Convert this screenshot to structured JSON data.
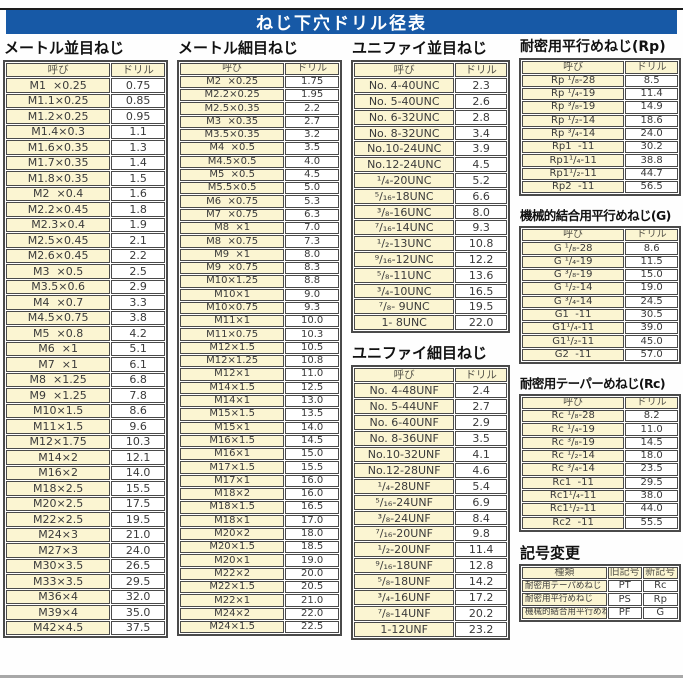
{
  "page_title": "ねじ下穴ドリル径表",
  "colors": {
    "header_blue": "#1759a6",
    "cell_cream": "#fbf5d2",
    "border_gray": "#4a4a4a"
  },
  "tables": [
    {
      "title": "メートル並目ねじ",
      "headers": [
        "呼び",
        "ドリル"
      ],
      "rows": [
        [
          "M1  ×0.25",
          "0.75"
        ],
        [
          "M1.1×0.25",
          "0.85"
        ],
        [
          "M1.2×0.25",
          "0.95"
        ],
        [
          "M1.4×0.3",
          "1.1"
        ],
        [
          "M1.6×0.35",
          "1.3"
        ],
        [
          "M1.7×0.35",
          "1.4"
        ],
        [
          "M1.8×0.35",
          "1.5"
        ],
        [
          "M2  ×0.4",
          "1.6"
        ],
        [
          "M2.2×0.45",
          "1.8"
        ],
        [
          "M2.3×0.4",
          "1.9"
        ],
        [
          "M2.5×0.45",
          "2.1"
        ],
        [
          "M2.6×0.45",
          "2.2"
        ],
        [
          "M3  ×0.5",
          "2.5"
        ],
        [
          "M3.5×0.6",
          "2.9"
        ],
        [
          "M4  ×0.7",
          "3.3"
        ],
        [
          "M4.5×0.75",
          "3.8"
        ],
        [
          "M5  ×0.8",
          "4.2"
        ],
        [
          "M6  ×1",
          "5.1"
        ],
        [
          "M7  ×1",
          "6.1"
        ],
        [
          "M8  ×1.25",
          "6.8"
        ],
        [
          "M9  ×1.25",
          "7.8"
        ],
        [
          "M10×1.5",
          "8.6"
        ],
        [
          "M11×1.5",
          "9.6"
        ],
        [
          "M12×1.75",
          "10.3"
        ],
        [
          "M14×2",
          "12.1"
        ],
        [
          "M16×2",
          "14.0"
        ],
        [
          "M18×2.5",
          "15.5"
        ],
        [
          "M20×2.5",
          "17.5"
        ],
        [
          "M22×2.5",
          "19.5"
        ],
        [
          "M24×3",
          "21.0"
        ],
        [
          "M27×3",
          "24.0"
        ],
        [
          "M30×3.5",
          "26.5"
        ],
        [
          "M33×3.5",
          "29.5"
        ],
        [
          "M36×4",
          "32.0"
        ],
        [
          "M39×4",
          "35.0"
        ],
        [
          "M42×4.5",
          "37.5"
        ]
      ]
    },
    {
      "title": "メートル細目ねじ",
      "headers": [
        "呼び",
        "ドリル"
      ],
      "rows": [
        [
          "M2  ×0.25",
          "1.75"
        ],
        [
          "M2.2×0.25",
          "1.95"
        ],
        [
          "M2.5×0.35",
          "2.2"
        ],
        [
          "M3  ×0.35",
          "2.7"
        ],
        [
          "M3.5×0.35",
          "3.2"
        ],
        [
          "M4  ×0.5",
          "3.5"
        ],
        [
          "M4.5×0.5",
          "4.0"
        ],
        [
          "M5  ×0.5",
          "4.5"
        ],
        [
          "M5.5×0.5",
          "5.0"
        ],
        [
          "M6  ×0.75",
          "5.3"
        ],
        [
          "M7  ×0.75",
          "6.3"
        ],
        [
          "M8  ×1",
          "7.0"
        ],
        [
          "M8  ×0.75",
          "7.3"
        ],
        [
          "M9  ×1",
          "8.0"
        ],
        [
          "M9  ×0.75",
          "8.3"
        ],
        [
          "M10×1.25",
          "8.8"
        ],
        [
          "M10×1",
          "9.0"
        ],
        [
          "M10×0.75",
          "9.3"
        ],
        [
          "M11×1",
          "10.0"
        ],
        [
          "M11×0.75",
          "10.3"
        ],
        [
          "M12×1.5",
          "10.5"
        ],
        [
          "M12×1.25",
          "10.8"
        ],
        [
          "M12×1",
          "11.0"
        ],
        [
          "M14×1.5",
          "12.5"
        ],
        [
          "M14×1",
          "13.0"
        ],
        [
          "M15×1.5",
          "13.5"
        ],
        [
          "M15×1",
          "14.0"
        ],
        [
          "M16×1.5",
          "14.5"
        ],
        [
          "M16×1",
          "15.0"
        ],
        [
          "M17×1.5",
          "15.5"
        ],
        [
          "M17×1",
          "16.0"
        ],
        [
          "M18×2",
          "16.0"
        ],
        [
          "M18×1.5",
          "16.5"
        ],
        [
          "M18×1",
          "17.0"
        ],
        [
          "M20×2",
          "18.0"
        ],
        [
          "M20×1.5",
          "18.5"
        ],
        [
          "M20×1",
          "19.0"
        ],
        [
          "M22×2",
          "20.0"
        ],
        [
          "M22×1.5",
          "20.5"
        ],
        [
          "M22×1",
          "21.0"
        ],
        [
          "M24×2",
          "22.0"
        ],
        [
          "M24×1.5",
          "22.5"
        ]
      ]
    },
    {
      "title": "ユニファイ並目ねじ",
      "headers": [
        "呼び",
        "ドリル"
      ],
      "rows": [
        [
          "No. 4-40UNC",
          "2.3"
        ],
        [
          "No. 5-40UNC",
          "2.6"
        ],
        [
          "No. 6-32UNC",
          "2.8"
        ],
        [
          "No. 8-32UNC",
          "3.4"
        ],
        [
          "No.10-24UNC",
          "3.9"
        ],
        [
          "No.12-24UNC",
          "4.5"
        ],
        [
          "¹/₄-20UNC",
          "5.2"
        ],
        [
          "⁵/₁₆-18UNC",
          "6.6"
        ],
        [
          "³/₈-16UNC",
          "8.0"
        ],
        [
          "⁷/₁₆-14UNC",
          "9.3"
        ],
        [
          "¹/₂-13UNC",
          "10.8"
        ],
        [
          "⁹/₁₆-12UNC",
          "12.2"
        ],
        [
          "⁵/₈-11UNC",
          "13.6"
        ],
        [
          "³/₄-10UNC",
          "16.5"
        ],
        [
          "⁷/₈- 9UNC",
          "19.5"
        ],
        [
          "1- 8UNC",
          "22.0"
        ]
      ]
    },
    {
      "title": "ユニファイ細目ねじ",
      "headers": [
        "呼び",
        "ドリル"
      ],
      "rows": [
        [
          "No. 4-48UNF",
          "2.4"
        ],
        [
          "No. 5-44UNF",
          "2.7"
        ],
        [
          "No. 6-40UNF",
          "2.9"
        ],
        [
          "No. 8-36UNF",
          "3.5"
        ],
        [
          "No.10-32UNF",
          "4.1"
        ],
        [
          "No.12-28UNF",
          "4.6"
        ],
        [
          "¹/₄-28UNF",
          "5.4"
        ],
        [
          "⁵/₁₆-24UNF",
          "6.9"
        ],
        [
          "³/₈-24UNF",
          "8.4"
        ],
        [
          "⁷/₁₆-20UNF",
          "9.8"
        ],
        [
          "¹/₂-20UNF",
          "11.4"
        ],
        [
          "⁹/₁₆-18UNF",
          "12.8"
        ],
        [
          "⁵/₈-18UNF",
          "14.2"
        ],
        [
          "³/₄-16UNF",
          "17.2"
        ],
        [
          "⁷/₈-14UNF",
          "20.2"
        ],
        [
          "1-12UNF",
          "23.2"
        ]
      ]
    },
    {
      "title": "耐密用平行めねじ(Rp)",
      "headers": [
        "呼び",
        "ドリル"
      ],
      "rows": [
        [
          "Rp ¹/₈-28",
          "8.5"
        ],
        [
          "Rp ¹/₄-19",
          "11.4"
        ],
        [
          "Rp ³/₈-19",
          "14.9"
        ],
        [
          "Rp ¹/₂-14",
          "18.6"
        ],
        [
          "Rp ³/₄-14",
          "24.0"
        ],
        [
          "Rp1  -11",
          "30.2"
        ],
        [
          "Rp1¹/₄-11",
          "38.8"
        ],
        [
          "Rp1¹/₂-11",
          "44.7"
        ],
        [
          "Rp2  -11",
          "56.5"
        ]
      ]
    },
    {
      "title": "機械的結合用平行めねじ(G)",
      "headers": [
        "呼び",
        "ドリル"
      ],
      "rows": [
        [
          "G ¹/₈-28",
          "8.6"
        ],
        [
          "G ¹/₄-19",
          "11.5"
        ],
        [
          "G ³/₈-19",
          "15.0"
        ],
        [
          "G ¹/₂-14",
          "19.0"
        ],
        [
          "G ³/₄-14",
          "24.5"
        ],
        [
          "G1  -11",
          "30.5"
        ],
        [
          "G1¹/₄-11",
          "39.0"
        ],
        [
          "G1¹/₂-11",
          "45.0"
        ],
        [
          "G2  -11",
          "57.0"
        ]
      ]
    },
    {
      "title": "耐密用テーパーめねじ(Rc)",
      "headers": [
        "呼び",
        "ドリル"
      ],
      "rows": [
        [
          "Rc ¹/₈-28",
          "8.2"
        ],
        [
          "Rc ¹/₄-19",
          "11.0"
        ],
        [
          "Rc ³/₈-19",
          "14.5"
        ],
        [
          "Rc ¹/₂-14",
          "18.0"
        ],
        [
          "Rc ³/₄-14",
          "23.5"
        ],
        [
          "Rc1  -11",
          "29.5"
        ],
        [
          "Rc1¹/₄-11",
          "38.0"
        ],
        [
          "Rc1¹/₂-11",
          "44.0"
        ],
        [
          "Rc2  -11",
          "55.5"
        ]
      ]
    },
    {
      "title": "記号変更",
      "headers": [
        "種類",
        "旧記号",
        "新記号"
      ],
      "rows": [
        [
          "耐密用テーパめねじ",
          "PT",
          "Rc"
        ],
        [
          "耐密用平行めねじ",
          "PS",
          "Rp"
        ],
        [
          "機械的結合用平行めねじ",
          "PF",
          "G"
        ]
      ]
    }
  ]
}
